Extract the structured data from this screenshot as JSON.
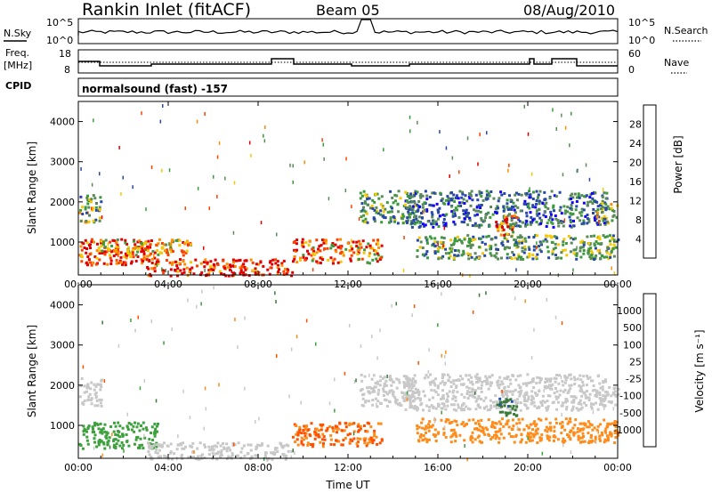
{
  "header": {
    "title": "Rankin Inlet (fitACF)",
    "beam": "Beam 05",
    "date": "08/Aug/2010"
  },
  "noise_panel": {
    "left_label": "N.Sky",
    "right_label": "N.Search",
    "left_ticks": [
      "10^5",
      "10^0"
    ],
    "right_ticks": [
      "10^5",
      "10^0"
    ]
  },
  "freq_panel": {
    "left_label_1": "Freq.",
    "left_label_2": "[MHz]",
    "right_label": "Nave",
    "left_ticks": [
      "18",
      "8"
    ],
    "right_ticks": [
      "60",
      "0"
    ]
  },
  "cpid": {
    "label": "CPID",
    "text": "normalsound (fast) -157"
  },
  "icons": [
    "solid-line-legend-icon",
    "dotted-line-legend-icon"
  ],
  "chart_data": [
    {
      "type": "heatmap",
      "name": "power",
      "ylabel": "Slant Range [km]",
      "colorbar_label": "Power [dB]",
      "colorbar_ticks": [
        "28",
        "24",
        "20",
        "16",
        "12",
        "8",
        "4"
      ],
      "colorbar_colors": [
        "#e00000",
        "#ff4000",
        "#ff8c00",
        "#f5c800",
        "#3c9a3c",
        "#5a8a5a",
        "#2848a8",
        "#1400ff"
      ],
      "ylim": [
        180,
        4500
      ],
      "yticks": [
        "1000",
        "2000",
        "3000",
        "4000"
      ],
      "xticks": [
        "00:00",
        "04:00",
        "08:00",
        "12:00",
        "16:00",
        "20:00",
        "00:00"
      ],
      "regions": [
        {
          "t0": 0.0,
          "t1": 3.5,
          "r0": 450,
          "r1": 1100,
          "v": 26
        },
        {
          "t0": 3.0,
          "t1": 9.5,
          "r0": 180,
          "r1": 600,
          "v": 29
        },
        {
          "t0": 0.0,
          "t1": 1.0,
          "r0": 1500,
          "r1": 2200,
          "v": 12
        },
        {
          "t0": 1.0,
          "t1": 5.0,
          "r0": 700,
          "r1": 1100,
          "v": 18
        },
        {
          "t0": 9.5,
          "t1": 13.5,
          "r0": 500,
          "r1": 1100,
          "v": 22
        },
        {
          "t0": 12.5,
          "t1": 15.0,
          "r0": 1500,
          "r1": 2300,
          "v": 10
        },
        {
          "t0": 15.0,
          "t1": 24.0,
          "r0": 600,
          "r1": 1200,
          "v": 10
        },
        {
          "t0": 14.5,
          "t1": 23.5,
          "r0": 1400,
          "r1": 2300,
          "v": 6
        },
        {
          "t0": 18.5,
          "t1": 19.5,
          "r0": 1200,
          "r1": 1700,
          "v": 24
        },
        {
          "t0": 23.0,
          "t1": 24.0,
          "r0": 1500,
          "r1": 2000,
          "v": 12
        }
      ]
    },
    {
      "type": "heatmap",
      "name": "velocity",
      "ylabel": "Slant Range [km]",
      "xlabel": "Time UT",
      "colorbar_label": "Velocity [m s⁻¹]",
      "colorbar_ticks": [
        "1000",
        "500",
        "100",
        "25",
        "-25",
        "-100",
        "-500",
        "-1000"
      ],
      "colorbar_colors": [
        "#2050b0",
        "#3c7a3c",
        "#3ca03c",
        "#5ad060",
        "#c8c8c8",
        "#f0d000",
        "#ff8c1a",
        "#ff5000",
        "#e00000"
      ],
      "ylim": [
        180,
        4500
      ],
      "yticks": [
        "1000",
        "2000",
        "3000",
        "4000"
      ],
      "xticks": [
        "00:00",
        "04:00",
        "08:00",
        "12:00",
        "16:00",
        "20:00",
        "00:00"
      ],
      "regions": [
        {
          "t0": 0.0,
          "t1": 3.5,
          "r0": 450,
          "r1": 1100,
          "v": 100
        },
        {
          "t0": 0.0,
          "t1": 1.0,
          "r0": 1500,
          "r1": 2200,
          "v": 0
        },
        {
          "t0": 3.0,
          "t1": 9.5,
          "r0": 180,
          "r1": 600,
          "v": 0
        },
        {
          "t0": 9.5,
          "t1": 13.5,
          "r0": 500,
          "r1": 1100,
          "v": -300
        },
        {
          "t0": 12.5,
          "t1": 15.0,
          "r0": 1500,
          "r1": 2300,
          "v": 0
        },
        {
          "t0": 15.0,
          "t1": 24.0,
          "r0": 600,
          "r1": 1200,
          "v": -200
        },
        {
          "t0": 14.5,
          "t1": 23.5,
          "r0": 1400,
          "r1": 2300,
          "v": 0
        },
        {
          "t0": 18.5,
          "t1": 19.5,
          "r0": 1200,
          "r1": 1700,
          "v": 600
        },
        {
          "t0": 23.0,
          "t1": 24.0,
          "r0": 1500,
          "r1": 2000,
          "v": 0
        }
      ]
    }
  ]
}
